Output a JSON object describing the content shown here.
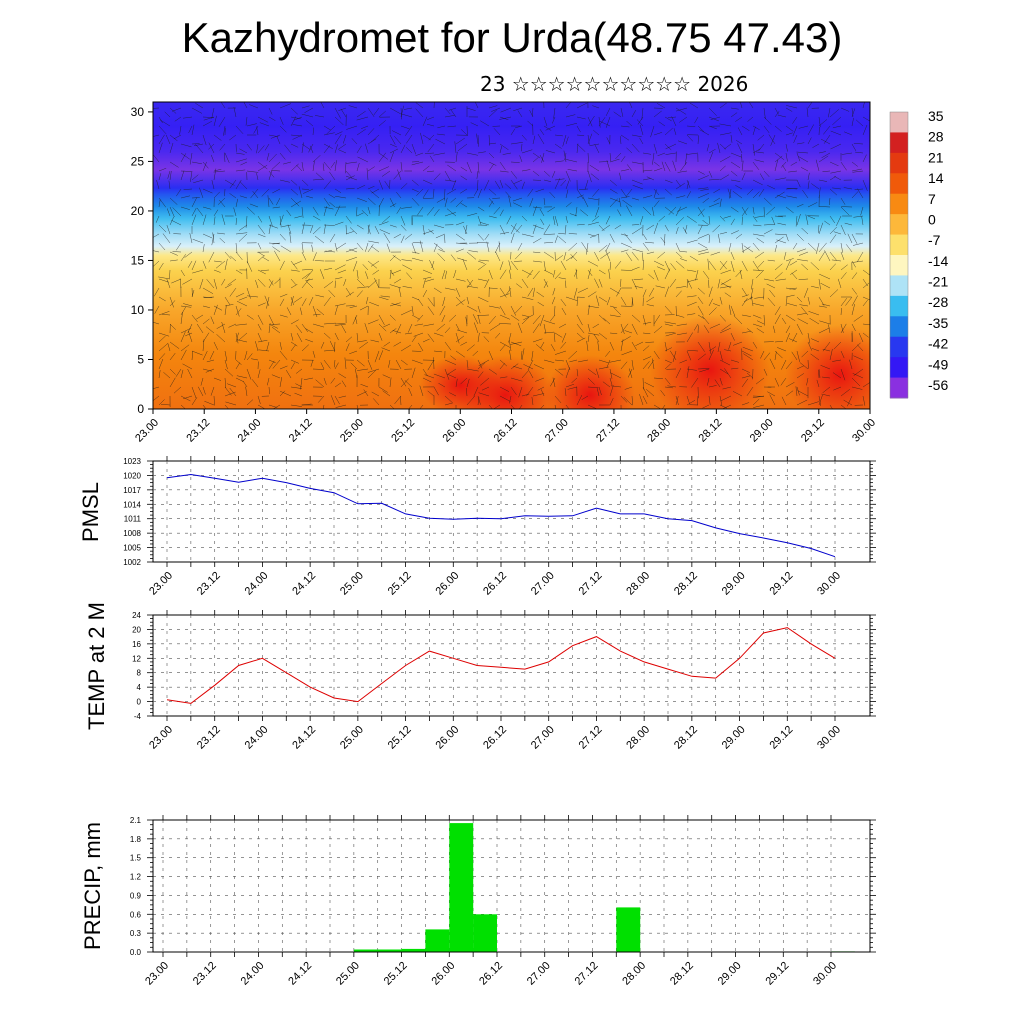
{
  "page": {
    "title": "Kazhydromet for Urda(48.75 47.43)",
    "subtitle": "23 ☆☆☆☆☆☆☆☆☆☆ 2026"
  },
  "time_labels": [
    "23.00",
    "23.12",
    "24.00",
    "24.12",
    "25.00",
    "25.12",
    "26.00",
    "26.12",
    "27.00",
    "27.12",
    "28.00",
    "28.12",
    "29.00",
    "29.12",
    "30.00"
  ],
  "chart_data": [
    {
      "type": "heatmap",
      "title": "",
      "xlabel": "",
      "ylabel": "",
      "y_ticks": [
        0,
        5,
        10,
        15,
        20,
        25,
        30
      ],
      "ylim": [
        0,
        31
      ],
      "colorbar": {
        "labels": [
          "35",
          "28",
          "21",
          "14",
          "7",
          "0",
          "-7",
          "-14",
          "-21",
          "-28",
          "-35",
          "-42",
          "-49",
          "-56"
        ],
        "colors": [
          "#e9b7b7",
          "#d32020",
          "#e43a10",
          "#f05a0a",
          "#f88a12",
          "#fdb83a",
          "#fde06c",
          "#fef6c0",
          "#aee3f6",
          "#39bdf0",
          "#1c7ee8",
          "#2838f0",
          "#3418f5",
          "#8a30e0"
        ]
      },
      "note_field": "temperature with wind vectors"
    },
    {
      "type": "line",
      "ylabel": "PMSL",
      "y_ticks": [
        1002,
        1005,
        1008,
        1011,
        1014,
        1017,
        1020,
        1023
      ],
      "ylim": [
        1002,
        1023
      ],
      "color": "#0000cc",
      "x": [
        0,
        1,
        2,
        3,
        4,
        5,
        6,
        7,
        8,
        9,
        10,
        11,
        12,
        13,
        14,
        15,
        16,
        17,
        18,
        19,
        20,
        21,
        22,
        23,
        24,
        25,
        26,
        27,
        28
      ],
      "values": [
        1019.5,
        1020.2,
        1019.4,
        1018.6,
        1019.4,
        1018.5,
        1017.3,
        1016.4,
        1014.1,
        1014.2,
        1012.0,
        1011.1,
        1010.9,
        1011.1,
        1011.0,
        1011.6,
        1011.5,
        1011.6,
        1013.2,
        1012.0,
        1012.0,
        1011.0,
        1010.6,
        1009.1,
        1007.9,
        1007.0,
        1006.0,
        1004.8,
        1003.1
      ]
    },
    {
      "type": "line",
      "ylabel": "TEMP at 2 M",
      "y_ticks": [
        -4,
        0,
        4,
        8,
        12,
        16,
        20,
        24
      ],
      "ylim": [
        -4,
        24
      ],
      "color": "#dd0000",
      "x": [
        0,
        1,
        2,
        3,
        4,
        5,
        6,
        7,
        8,
        9,
        10,
        11,
        12,
        13,
        14,
        15,
        16,
        17,
        18,
        19,
        20,
        21,
        22,
        23,
        24,
        25,
        26,
        27,
        28
      ],
      "values": [
        0.5,
        -0.5,
        4.5,
        10,
        12,
        8,
        4,
        1,
        0,
        5,
        10,
        14,
        12,
        10,
        9.5,
        9,
        11,
        15.5,
        18,
        14,
        11,
        9,
        7,
        6.5,
        12,
        19,
        20.5,
        16,
        12
      ]
    },
    {
      "type": "bar",
      "ylabel": "PRECIP, mm",
      "y_ticks": [
        "0.0",
        "0.3",
        "0.6",
        "0.9",
        "1.2",
        "1.5",
        "1.8",
        "2.1"
      ],
      "ylim": [
        0,
        2.1
      ],
      "color": "#00e000",
      "x": [
        0,
        1,
        2,
        3,
        4,
        5,
        6,
        7,
        8,
        9,
        10,
        11,
        12,
        13,
        14,
        15,
        16,
        17,
        18,
        19,
        20,
        21,
        22,
        23,
        24,
        25,
        26,
        27,
        28
      ],
      "values": [
        0,
        0,
        0,
        0,
        0,
        0,
        0,
        0,
        0.04,
        0.04,
        0.05,
        0.36,
        2.05,
        0.6,
        0,
        0,
        0,
        0,
        0,
        0.71,
        0,
        0,
        0,
        0,
        0,
        0,
        0,
        0,
        0.01
      ]
    }
  ]
}
